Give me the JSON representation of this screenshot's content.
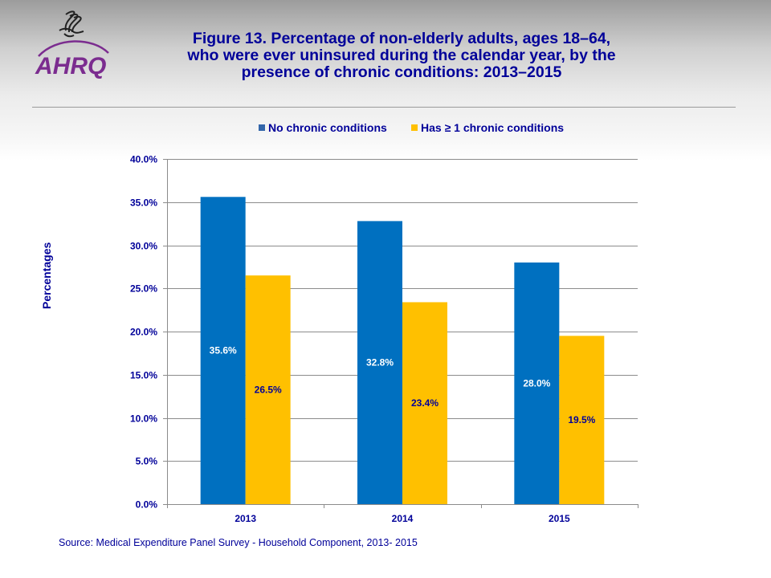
{
  "header": {
    "logo_text": "AHRQ",
    "title_lines": [
      "Figure 13. Percentage of non-elderly adults, ages 18–64,",
      "who were ever uninsured during the calendar year, by the",
      "presence of chronic conditions: 2013–2015"
    ]
  },
  "footer": {
    "source": "Source: Medical Expenditure Panel Survey - Household Component, 2013- 2015"
  },
  "colors": {
    "series1": "#0070c0",
    "series2": "#ffc000",
    "text": "#000099",
    "logo": "#7b2c8f"
  },
  "chart_data": {
    "type": "bar",
    "title": "Figure 13. Percentage of non-elderly adults, ages 18–64, who were ever uninsured during the calendar year, by the presence of chronic conditions: 2013–2015",
    "xlabel": "",
    "ylabel": "Percentages",
    "categories": [
      "2013",
      "2014",
      "2015"
    ],
    "series": [
      {
        "name": "No chronic conditions",
        "values": [
          35.6,
          32.8,
          28.0
        ],
        "labels": [
          "35.6%",
          "32.8%",
          "28.0%"
        ],
        "color": "#0070c0",
        "label_color": "#ffffff"
      },
      {
        "name": "Has ≥ 1 chronic conditions",
        "values": [
          26.5,
          23.4,
          19.5
        ],
        "labels": [
          "26.5%",
          "23.4%",
          "19.5%"
        ],
        "color": "#ffc000",
        "label_color": "#000099"
      }
    ],
    "ylim": [
      0,
      40
    ],
    "yticks": [
      0,
      5,
      10,
      15,
      20,
      25,
      30,
      35,
      40
    ],
    "ytick_labels": [
      "0.0%",
      "5.0%",
      "10.0%",
      "15.0%",
      "20.0%",
      "25.0%",
      "30.0%",
      "35.0%",
      "40.0%"
    ],
    "grid": true,
    "legend": "top"
  }
}
